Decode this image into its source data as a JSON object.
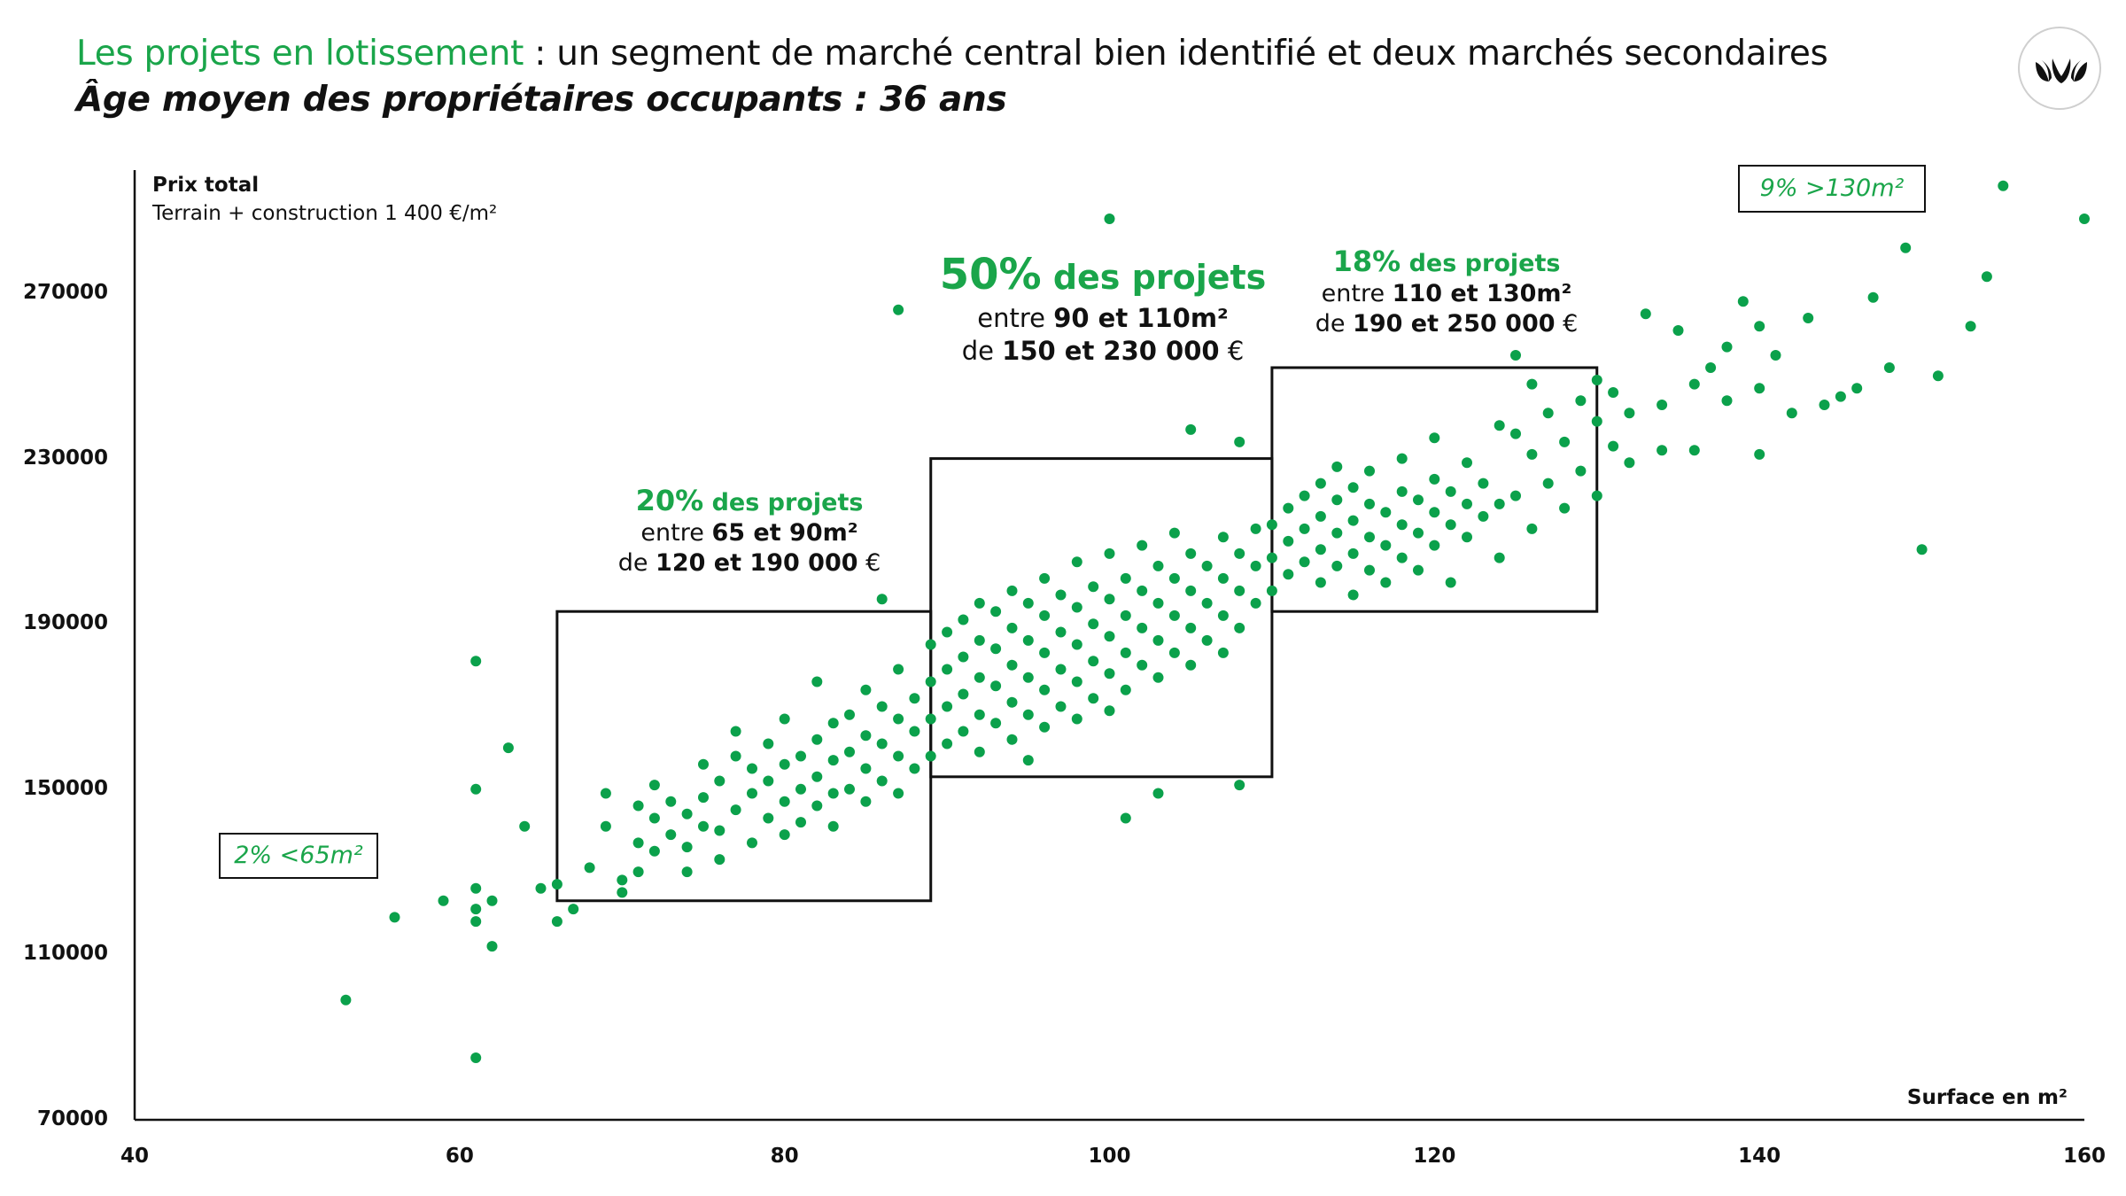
{
  "header": {
    "title_accent": "Les projets en lotissement",
    "title_rest": " : un segment de marché central bien identifié et deux marchés secondaires",
    "subtitle": "Âge moyen des propriétaires occupants : 36 ans",
    "logo_icon": "leaf-logo-icon"
  },
  "colors": {
    "accent": "#1aa54a",
    "dot": "#0ba14b",
    "text": "#111111"
  },
  "annotations": {
    "low": {
      "pct": "20%",
      "label": " des projets",
      "line1_a": "entre ",
      "line1_b": "65 et 90m²",
      "line2_a": "de ",
      "line2_b": "120 et 190 000",
      "line2_c": " €"
    },
    "mid": {
      "pct": "50%",
      "label": " des projets",
      "line1_a": "entre ",
      "line1_b": "90 et 110m²",
      "line2_a": "de ",
      "line2_b": "150 et 230 000",
      "line2_c": " €"
    },
    "high": {
      "pct": "18%",
      "label": " des projets",
      "line1_a": "entre ",
      "line1_b": "110 et 130m²",
      "line2_a": "de ",
      "line2_b": "190 et 250 000",
      "line2_c": " €"
    },
    "small_tag": "2% <65m²",
    "large_tag": "9% >130m²"
  },
  "chart_data": {
    "type": "scatter",
    "title": "",
    "xlabel": "Surface en m²",
    "ylabel": "Prix total",
    "ylabel_sub": "Terrain + construction 1 400 €/m²",
    "xlim": [
      40,
      160
    ],
    "ylim": [
      70000,
      290000
    ],
    "xticks": [
      40,
      60,
      80,
      100,
      120,
      140,
      160
    ],
    "yticks": [
      70000,
      110000,
      150000,
      190000,
      230000,
      270000
    ],
    "grid": false,
    "legend": "none",
    "segments": [
      {
        "name": "20% des projets",
        "x_range": [
          66,
          89
        ],
        "y_range": [
          123000,
          193000
        ]
      },
      {
        "name": "50% des projets",
        "x_range": [
          89,
          110
        ],
        "y_range": [
          153000,
          230000
        ]
      },
      {
        "name": "18% des projets",
        "x_range": [
          110,
          130
        ],
        "y_range": [
          193000,
          252000
        ]
      }
    ],
    "points": [
      [
        53,
        99000
      ],
      [
        56,
        119000
      ],
      [
        59,
        123000
      ],
      [
        61,
        85000
      ],
      [
        61,
        118000
      ],
      [
        61,
        121000
      ],
      [
        61,
        126000
      ],
      [
        61,
        150000
      ],
      [
        61,
        181000
      ],
      [
        62,
        112000
      ],
      [
        62,
        123000
      ],
      [
        63,
        160000
      ],
      [
        64,
        141000
      ],
      [
        65,
        126000
      ],
      [
        66,
        118000
      ],
      [
        66,
        127000
      ],
      [
        67,
        121000
      ],
      [
        68,
        131000
      ],
      [
        69,
        149000
      ],
      [
        69,
        141000
      ],
      [
        70,
        125000
      ],
      [
        70,
        128000
      ],
      [
        71,
        130000
      ],
      [
        71,
        137000
      ],
      [
        71,
        146000
      ],
      [
        72,
        135000
      ],
      [
        72,
        143000
      ],
      [
        72,
        151000
      ],
      [
        73,
        139000
      ],
      [
        73,
        147000
      ],
      [
        74,
        130000
      ],
      [
        74,
        136000
      ],
      [
        74,
        144000
      ],
      [
        75,
        141000
      ],
      [
        75,
        148000
      ],
      [
        75,
        156000
      ],
      [
        76,
        133000
      ],
      [
        76,
        140000
      ],
      [
        76,
        152000
      ],
      [
        77,
        145000
      ],
      [
        77,
        158000
      ],
      [
        77,
        164000
      ],
      [
        78,
        137000
      ],
      [
        78,
        149000
      ],
      [
        78,
        155000
      ],
      [
        79,
        143000
      ],
      [
        79,
        152000
      ],
      [
        79,
        161000
      ],
      [
        80,
        139000
      ],
      [
        80,
        147000
      ],
      [
        80,
        156000
      ],
      [
        80,
        167000
      ],
      [
        81,
        142000
      ],
      [
        81,
        150000
      ],
      [
        81,
        158000
      ],
      [
        82,
        146000
      ],
      [
        82,
        153000
      ],
      [
        82,
        162000
      ],
      [
        82,
        176000
      ],
      [
        83,
        141000
      ],
      [
        83,
        149000
      ],
      [
        83,
        157000
      ],
      [
        83,
        166000
      ],
      [
        84,
        150000
      ],
      [
        84,
        159000
      ],
      [
        84,
        168000
      ],
      [
        85,
        147000
      ],
      [
        85,
        155000
      ],
      [
        85,
        163000
      ],
      [
        85,
        174000
      ],
      [
        86,
        152000
      ],
      [
        86,
        161000
      ],
      [
        86,
        170000
      ],
      [
        86,
        196000
      ],
      [
        87,
        149000
      ],
      [
        87,
        158000
      ],
      [
        87,
        167000
      ],
      [
        87,
        179000
      ],
      [
        88,
        155000
      ],
      [
        88,
        164000
      ],
      [
        88,
        172000
      ],
      [
        89,
        158000
      ],
      [
        89,
        167000
      ],
      [
        89,
        176000
      ],
      [
        89,
        185000
      ],
      [
        90,
        161000
      ],
      [
        90,
        170000
      ],
      [
        90,
        179000
      ],
      [
        90,
        188000
      ],
      [
        91,
        164000
      ],
      [
        91,
        173000
      ],
      [
        91,
        182000
      ],
      [
        91,
        191000
      ],
      [
        92,
        159000
      ],
      [
        92,
        168000
      ],
      [
        92,
        177000
      ],
      [
        92,
        186000
      ],
      [
        92,
        195000
      ],
      [
        93,
        166000
      ],
      [
        93,
        175000
      ],
      [
        93,
        184000
      ],
      [
        93,
        193000
      ],
      [
        94,
        162000
      ],
      [
        94,
        171000
      ],
      [
        94,
        180000
      ],
      [
        94,
        189000
      ],
      [
        94,
        198000
      ],
      [
        95,
        157000
      ],
      [
        95,
        168000
      ],
      [
        95,
        177000
      ],
      [
        95,
        186000
      ],
      [
        95,
        195000
      ],
      [
        96,
        165000
      ],
      [
        96,
        174000
      ],
      [
        96,
        183000
      ],
      [
        96,
        192000
      ],
      [
        96,
        201000
      ],
      [
        97,
        170000
      ],
      [
        97,
        179000
      ],
      [
        97,
        188000
      ],
      [
        97,
        197000
      ],
      [
        98,
        167000
      ],
      [
        98,
        176000
      ],
      [
        98,
        185000
      ],
      [
        98,
        194000
      ],
      [
        98,
        205000
      ],
      [
        99,
        172000
      ],
      [
        99,
        181000
      ],
      [
        99,
        190000
      ],
      [
        99,
        199000
      ],
      [
        100,
        169000
      ],
      [
        100,
        178000
      ],
      [
        100,
        187000
      ],
      [
        100,
        196000
      ],
      [
        100,
        207000
      ],
      [
        101,
        174000
      ],
      [
        101,
        183000
      ],
      [
        101,
        192000
      ],
      [
        101,
        201000
      ],
      [
        101,
        143000
      ],
      [
        102,
        180000
      ],
      [
        102,
        189000
      ],
      [
        102,
        198000
      ],
      [
        102,
        209000
      ],
      [
        103,
        177000
      ],
      [
        103,
        186000
      ],
      [
        103,
        195000
      ],
      [
        103,
        204000
      ],
      [
        103,
        149000
      ],
      [
        104,
        183000
      ],
      [
        104,
        192000
      ],
      [
        104,
        201000
      ],
      [
        104,
        212000
      ],
      [
        105,
        180000
      ],
      [
        105,
        189000
      ],
      [
        105,
        198000
      ],
      [
        105,
        207000
      ],
      [
        106,
        186000
      ],
      [
        106,
        195000
      ],
      [
        106,
        204000
      ],
      [
        107,
        183000
      ],
      [
        107,
        192000
      ],
      [
        107,
        201000
      ],
      [
        107,
        211000
      ],
      [
        108,
        189000
      ],
      [
        108,
        198000
      ],
      [
        108,
        207000
      ],
      [
        108,
        151000
      ],
      [
        109,
        195000
      ],
      [
        109,
        204000
      ],
      [
        109,
        213000
      ],
      [
        110,
        198000
      ],
      [
        110,
        206000
      ],
      [
        110,
        214000
      ],
      [
        111,
        202000
      ],
      [
        111,
        210000
      ],
      [
        111,
        218000
      ],
      [
        112,
        205000
      ],
      [
        112,
        213000
      ],
      [
        112,
        221000
      ],
      [
        113,
        200000
      ],
      [
        113,
        208000
      ],
      [
        113,
        216000
      ],
      [
        113,
        224000
      ],
      [
        114,
        204000
      ],
      [
        114,
        212000
      ],
      [
        114,
        220000
      ],
      [
        114,
        228000
      ],
      [
        115,
        197000
      ],
      [
        115,
        207000
      ],
      [
        115,
        215000
      ],
      [
        115,
        223000
      ],
      [
        116,
        203000
      ],
      [
        116,
        211000
      ],
      [
        116,
        219000
      ],
      [
        116,
        227000
      ],
      [
        117,
        200000
      ],
      [
        117,
        209000
      ],
      [
        117,
        217000
      ],
      [
        118,
        206000
      ],
      [
        118,
        214000
      ],
      [
        118,
        222000
      ],
      [
        118,
        230000
      ],
      [
        119,
        203000
      ],
      [
        119,
        212000
      ],
      [
        119,
        220000
      ],
      [
        120,
        209000
      ],
      [
        120,
        217000
      ],
      [
        120,
        225000
      ],
      [
        120,
        235000
      ],
      [
        121,
        200000
      ],
      [
        121,
        214000
      ],
      [
        121,
        222000
      ],
      [
        122,
        211000
      ],
      [
        122,
        219000
      ],
      [
        122,
        229000
      ],
      [
        123,
        216000
      ],
      [
        123,
        224000
      ],
      [
        124,
        206000
      ],
      [
        124,
        219000
      ],
      [
        124,
        238000
      ],
      [
        125,
        221000
      ],
      [
        125,
        236000
      ],
      [
        126,
        213000
      ],
      [
        126,
        231000
      ],
      [
        126,
        248000
      ],
      [
        127,
        224000
      ],
      [
        127,
        241000
      ],
      [
        128,
        218000
      ],
      [
        128,
        234000
      ],
      [
        129,
        227000
      ],
      [
        129,
        244000
      ],
      [
        130,
        221000
      ],
      [
        130,
        239000
      ],
      [
        130,
        249000
      ],
      [
        131,
        233000
      ],
      [
        131,
        246000
      ],
      [
        132,
        229000
      ],
      [
        132,
        241000
      ],
      [
        133,
        265000
      ],
      [
        134,
        232000
      ],
      [
        134,
        243000
      ],
      [
        135,
        261000
      ],
      [
        136,
        248000
      ],
      [
        136,
        232000
      ],
      [
        137,
        252000
      ],
      [
        138,
        244000
      ],
      [
        138,
        257000
      ],
      [
        139,
        268000
      ],
      [
        140,
        231000
      ],
      [
        140,
        247000
      ],
      [
        140,
        262000
      ],
      [
        141,
        255000
      ],
      [
        142,
        241000
      ],
      [
        143,
        264000
      ],
      [
        144,
        243000
      ],
      [
        145,
        245000
      ],
      [
        146,
        247000
      ],
      [
        147,
        269000
      ],
      [
        148,
        252000
      ],
      [
        149,
        281000
      ],
      [
        150,
        208000
      ],
      [
        151,
        250000
      ],
      [
        153,
        262000
      ],
      [
        154,
        274000
      ],
      [
        155,
        296000
      ],
      [
        160,
        288000
      ],
      [
        100,
        288000
      ],
      [
        87,
        266000
      ],
      [
        105,
        237000
      ],
      [
        108,
        234000
      ],
      [
        125,
        255000
      ]
    ]
  }
}
